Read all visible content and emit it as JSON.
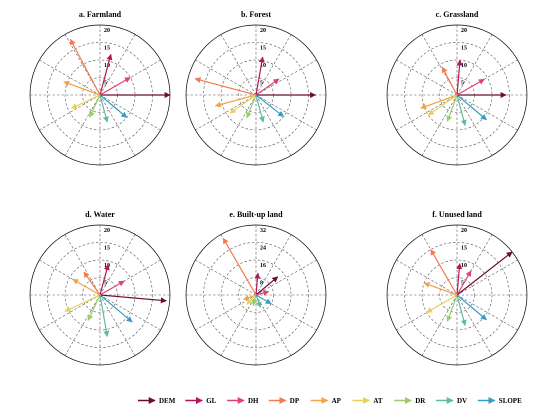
{
  "chart_data": [
    {
      "type": "polar-vector",
      "title": "a. Farmland",
      "rmax": 20,
      "ticks": [
        5,
        10,
        15,
        20
      ],
      "vectors": [
        {
          "name": "DEM",
          "angle": 0,
          "length": 20
        },
        {
          "name": "GL",
          "angle": 75,
          "length": 12
        },
        {
          "name": "DH",
          "angle": 30,
          "length": 10
        },
        {
          "name": "DP",
          "angle": 118,
          "length": 18
        },
        {
          "name": "AP",
          "angle": 160,
          "length": 11
        },
        {
          "name": "AT",
          "angle": 205,
          "length": 9
        },
        {
          "name": "DR",
          "angle": 245,
          "length": 7
        },
        {
          "name": "DV",
          "angle": 285,
          "length": 8
        },
        {
          "name": "SLOPE",
          "angle": 320,
          "length": 10
        }
      ]
    },
    {
      "type": "polar-vector",
      "title": "b. Forest",
      "rmax": 20,
      "ticks": [
        5,
        10,
        15,
        20
      ],
      "vectors": [
        {
          "name": "DEM",
          "angle": 0,
          "length": 17
        },
        {
          "name": "GL",
          "angle": 80,
          "length": 11
        },
        {
          "name": "DH",
          "angle": 35,
          "length": 8
        },
        {
          "name": "DP",
          "angle": 165,
          "length": 18
        },
        {
          "name": "AP",
          "angle": 195,
          "length": 12
        },
        {
          "name": "AT",
          "angle": 215,
          "length": 9
        },
        {
          "name": "DR",
          "angle": 248,
          "length": 7
        },
        {
          "name": "DV",
          "angle": 285,
          "length": 8
        },
        {
          "name": "SLOPE",
          "angle": 322,
          "length": 10
        }
      ]
    },
    {
      "type": "polar-vector",
      "title": "c. Grassland",
      "rmax": 20,
      "ticks": [
        5,
        10,
        15,
        20
      ],
      "vectors": [
        {
          "name": "DEM",
          "angle": 0,
          "length": 14
        },
        {
          "name": "GL",
          "angle": 85,
          "length": 10
        },
        {
          "name": "DH",
          "angle": 30,
          "length": 9
        },
        {
          "name": "DP",
          "angle": 118,
          "length": 9
        },
        {
          "name": "AP",
          "angle": 200,
          "length": 11
        },
        {
          "name": "AT",
          "angle": 215,
          "length": 10
        },
        {
          "name": "DR",
          "angle": 250,
          "length": 8
        },
        {
          "name": "DV",
          "angle": 285,
          "length": 9
        },
        {
          "name": "SLOPE",
          "angle": 320,
          "length": 11
        }
      ]
    },
    {
      "type": "polar-vector",
      "title": "d. Water",
      "rmax": 20,
      "ticks": [
        5,
        10,
        15,
        20
      ],
      "vectors": [
        {
          "name": "DEM",
          "angle": 355,
          "length": 19
        },
        {
          "name": "GL",
          "angle": 75,
          "length": 9
        },
        {
          "name": "DH",
          "angle": 30,
          "length": 8
        },
        {
          "name": "DP",
          "angle": 125,
          "length": 8
        },
        {
          "name": "AP",
          "angle": 150,
          "length": 9
        },
        {
          "name": "AT",
          "angle": 205,
          "length": 11
        },
        {
          "name": "DR",
          "angle": 245,
          "length": 8
        },
        {
          "name": "DV",
          "angle": 280,
          "length": 12
        },
        {
          "name": "SLOPE",
          "angle": 320,
          "length": 12
        }
      ]
    },
    {
      "type": "polar-vector",
      "title": "e. Built-up land",
      "rmax": 32,
      "ticks": [
        8,
        16,
        24,
        32
      ],
      "vectors": [
        {
          "name": "DEM",
          "angle": 40,
          "length": 13
        },
        {
          "name": "GL",
          "angle": 85,
          "length": 10
        },
        {
          "name": "DH",
          "angle": 15,
          "length": 6
        },
        {
          "name": "DP",
          "angle": 120,
          "length": 30
        },
        {
          "name": "AP",
          "angle": 200,
          "length": 6
        },
        {
          "name": "AT",
          "angle": 225,
          "length": 6
        },
        {
          "name": "DR",
          "angle": 255,
          "length": 5
        },
        {
          "name": "DV",
          "angle": 290,
          "length": 6
        },
        {
          "name": "SLOPE",
          "angle": 330,
          "length": 8
        }
      ]
    },
    {
      "type": "polar-vector",
      "title": "f. Unused land",
      "rmax": 20,
      "ticks": [
        5,
        10,
        15,
        20
      ],
      "vectors": [
        {
          "name": "DEM",
          "angle": 38,
          "length": 20
        },
        {
          "name": "GL",
          "angle": 85,
          "length": 9
        },
        {
          "name": "DH",
          "angle": 60,
          "length": 8
        },
        {
          "name": "DP",
          "angle": 120,
          "length": 15
        },
        {
          "name": "AP",
          "angle": 160,
          "length": 10
        },
        {
          "name": "AT",
          "angle": 210,
          "length": 10
        },
        {
          "name": "DR",
          "angle": 250,
          "length": 8
        },
        {
          "name": "DV",
          "angle": 285,
          "length": 9
        },
        {
          "name": "SLOPE",
          "angle": 320,
          "length": 11
        }
      ]
    }
  ],
  "legend": [
    {
      "name": "DEM",
      "color": "#6b0d33"
    },
    {
      "name": "GL",
      "color": "#b5155a"
    },
    {
      "name": "DH",
      "color": "#e0436f"
    },
    {
      "name": "DP",
      "color": "#f47a4e"
    },
    {
      "name": "AP",
      "color": "#f2a347"
    },
    {
      "name": "AT",
      "color": "#e9cf5b"
    },
    {
      "name": "DR",
      "color": "#9ccc6a"
    },
    {
      "name": "DV",
      "color": "#5dbd9c"
    },
    {
      "name": "SLOPE",
      "color": "#3a9cc4"
    }
  ]
}
